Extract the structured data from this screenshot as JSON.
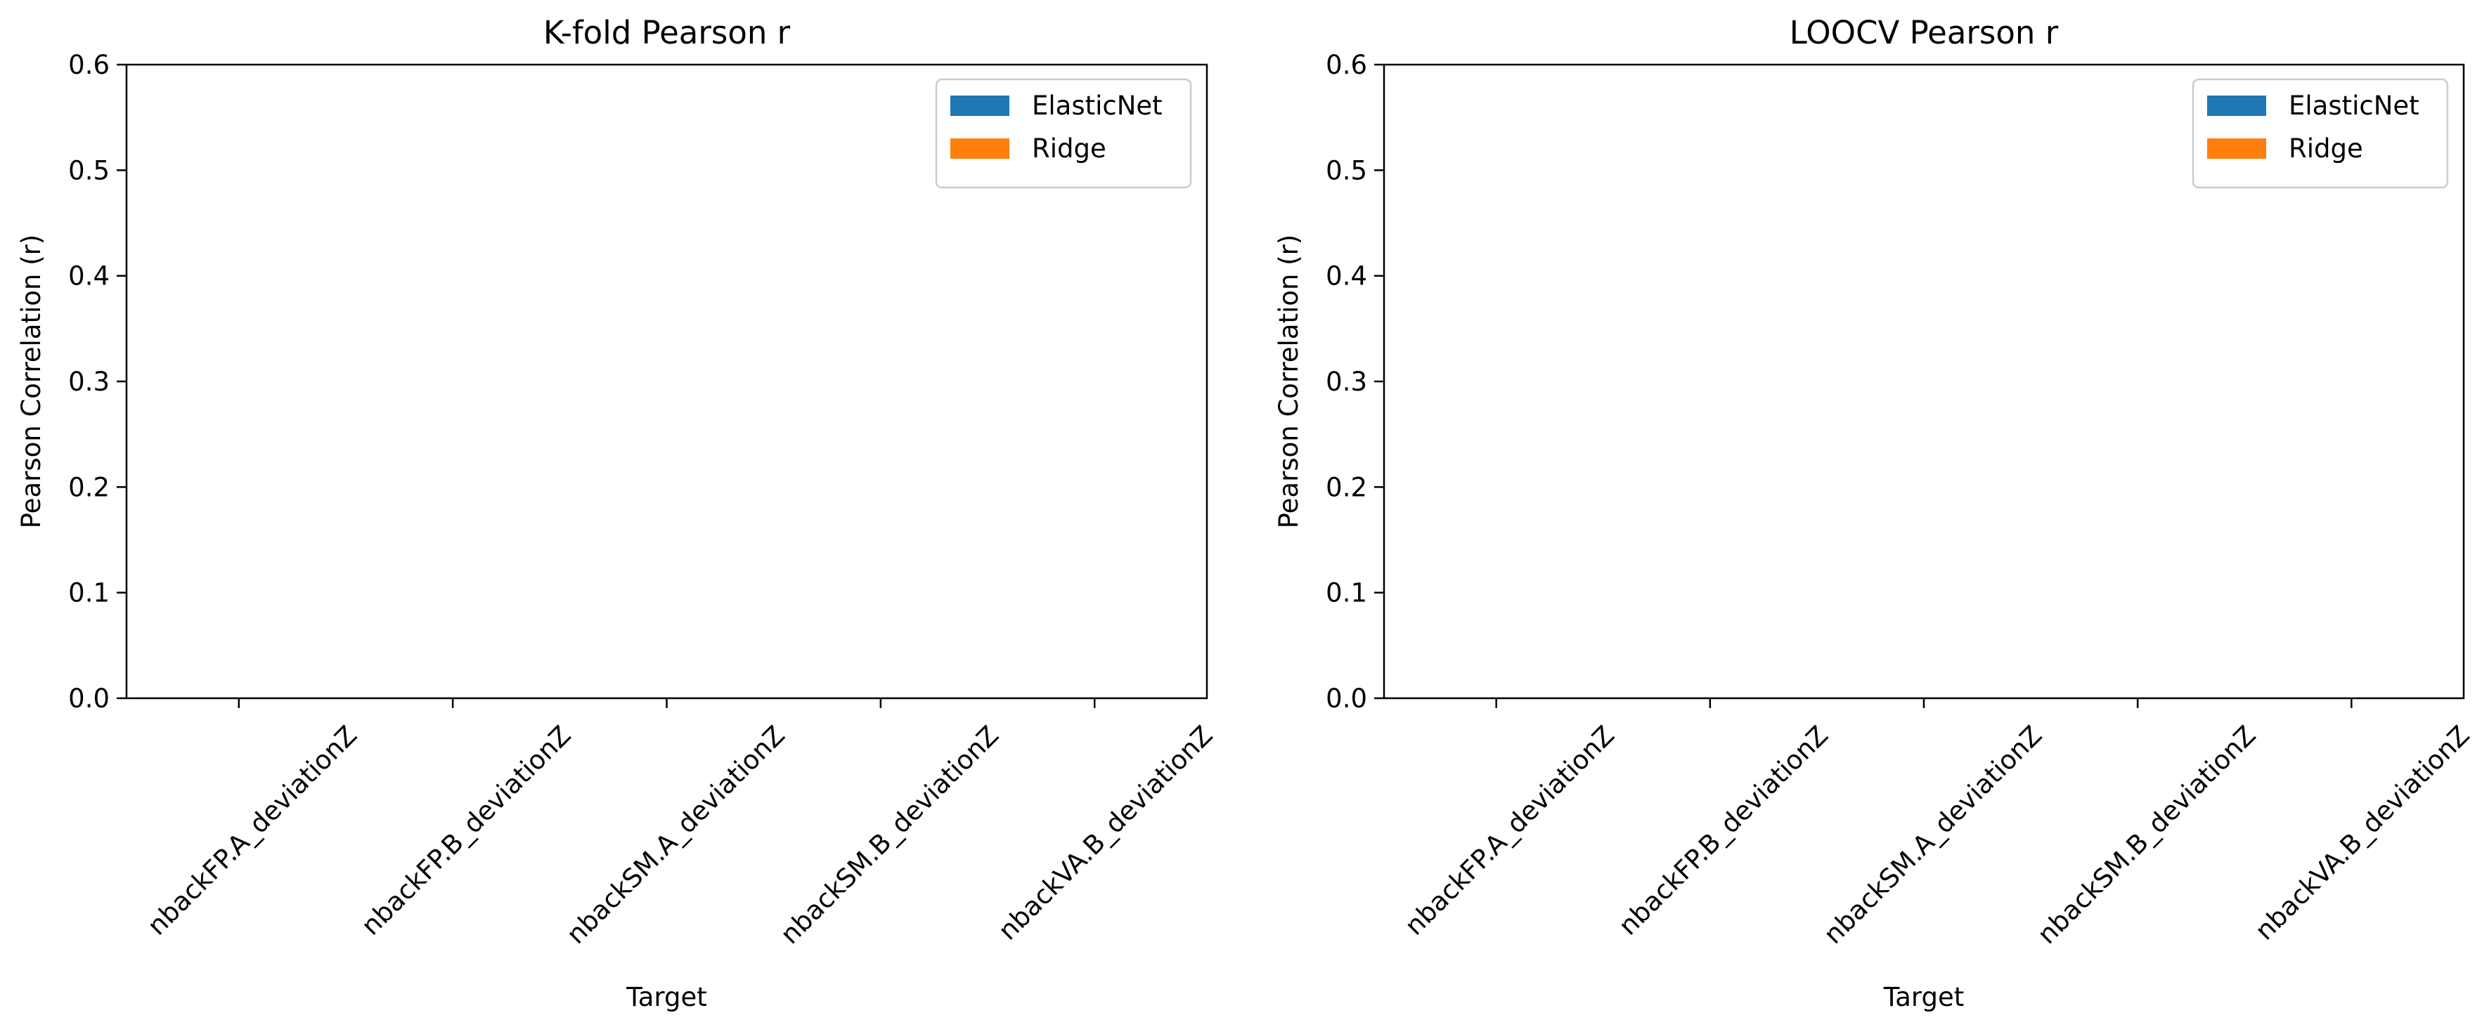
{
  "chart_data": [
    {
      "type": "bar",
      "title": "K-fold Pearson r",
      "xlabel": "Target",
      "ylabel": "Pearson Correlation (r)",
      "ylim": [
        0,
        0.6
      ],
      "yticks": [
        "0.0",
        "0.1",
        "0.2",
        "0.3",
        "0.4",
        "0.5",
        "0.6"
      ],
      "categories": [
        "nbackFP.A_deviationZ",
        "nbackFP.B_deviationZ",
        "nbackSM.A_deviationZ",
        "nbackSM.B_deviationZ",
        "nbackVA.B_deviationZ"
      ],
      "series": [
        {
          "name": "ElasticNet",
          "color": "#1f77b4",
          "values": [
            0,
            0,
            0,
            0,
            0
          ]
        },
        {
          "name": "Ridge",
          "color": "#ff7f0e",
          "values": [
            0,
            0,
            0,
            0,
            0
          ]
        }
      ],
      "legend": "top-right",
      "grid": false
    },
    {
      "type": "bar",
      "title": "LOOCV Pearson r",
      "xlabel": "Target",
      "ylabel": "Pearson Correlation (r)",
      "ylim": [
        0,
        0.6
      ],
      "yticks": [
        "0.0",
        "0.1",
        "0.2",
        "0.3",
        "0.4",
        "0.5",
        "0.6"
      ],
      "categories": [
        "nbackFP.A_deviationZ",
        "nbackFP.B_deviationZ",
        "nbackSM.A_deviationZ",
        "nbackSM.B_deviationZ",
        "nbackVA.B_deviationZ"
      ],
      "series": [
        {
          "name": "ElasticNet",
          "color": "#1f77b4",
          "values": [
            0,
            0,
            0,
            0,
            0
          ]
        },
        {
          "name": "Ridge",
          "color": "#ff7f0e",
          "values": [
            0,
            0,
            0,
            0,
            0
          ]
        }
      ],
      "legend": "top-right",
      "grid": false
    }
  ]
}
